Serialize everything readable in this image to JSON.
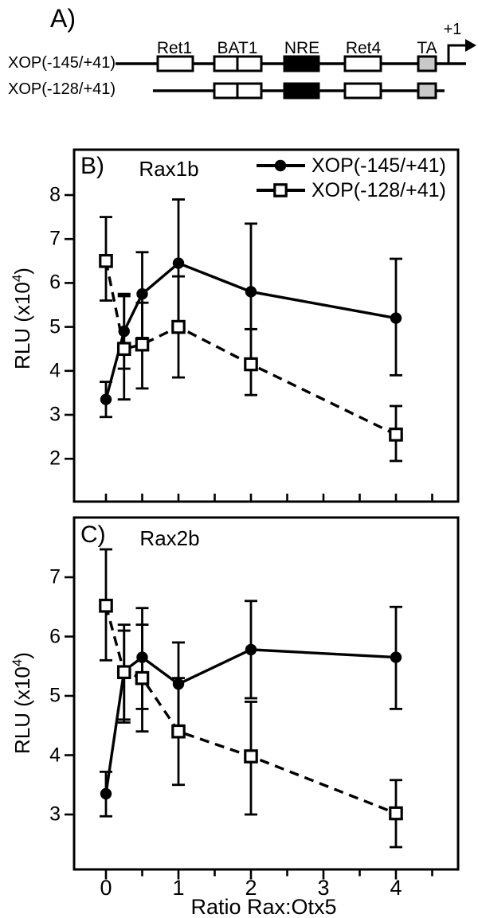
{
  "panel_a": {
    "label": "A)",
    "constructs": [
      {
        "name": "XOP(-145/+41)"
      },
      {
        "name": "XOP(-128/+41)"
      }
    ],
    "motif_labels": [
      "Ret1",
      "BAT1",
      "NRE",
      "Ret4",
      "TA"
    ],
    "tss_label": "+1",
    "colors": {
      "open": "#ffffff",
      "nre": "#000000",
      "ta": "#c9c9c9"
    }
  },
  "chart_data": [
    {
      "type": "line",
      "panel_label": "B)",
      "title": "Rax1b",
      "ylabel_base": "RLU (x10",
      "ylabel_sup": "4",
      "ylabel_close": ")",
      "x": [
        0,
        0.25,
        0.5,
        1,
        2,
        4
      ],
      "xlim": [
        -0.44,
        4.86
      ],
      "ylim": [
        1,
        9
      ],
      "yticks": [
        2,
        3,
        4,
        5,
        6,
        7,
        8
      ],
      "xticks": [
        0,
        1,
        2,
        3,
        4
      ],
      "xtick_minor_step": 0.5,
      "x_tick_labels_visible": false,
      "grid": false,
      "legend": {
        "position": "top-right",
        "entries": [
          "XOP(-145/+41)",
          "XOP(-128/+41)"
        ]
      },
      "series": [
        {
          "name": "XOP(-145/+41)",
          "marker": "filled-circle",
          "line_style": "solid",
          "values": [
            3.35,
            4.9,
            5.75,
            6.45,
            5.8,
            5.2
          ],
          "err_lo": [
            2.95,
            4.05,
            4.75,
            5.0,
            4.95,
            3.9
          ],
          "err_hi": [
            3.75,
            5.75,
            6.7,
            7.9,
            7.35,
            6.55
          ]
        },
        {
          "name": "XOP(-128/+41)",
          "marker": "open-square",
          "line_style": "dashed",
          "values": [
            6.5,
            4.5,
            4.6,
            5.0,
            4.15,
            2.55
          ],
          "err_lo": [
            5.6,
            3.35,
            3.6,
            3.85,
            3.45,
            1.95
          ],
          "err_hi": [
            7.5,
            5.7,
            5.55,
            6.15,
            4.95,
            3.2
          ]
        }
      ]
    },
    {
      "type": "line",
      "panel_label": "C)",
      "title": "Rax2b",
      "xlabel": "Ratio Rax:Otx5",
      "ylabel_base": "RLU (x10",
      "ylabel_sup": "4",
      "ylabel_close": ")",
      "x": [
        0,
        0.25,
        0.5,
        1,
        2,
        4
      ],
      "xlim": [
        -0.44,
        4.86
      ],
      "ylim": [
        2,
        8
      ],
      "yticks": [
        3,
        4,
        5,
        6,
        7
      ],
      "xticks": [
        0,
        1,
        2,
        3,
        4
      ],
      "xtick_minor_step": 0.5,
      "x_tick_labels_visible": true,
      "grid": false,
      "series": [
        {
          "name": "XOP(-145/+41)",
          "marker": "filled-circle",
          "line_style": "solid",
          "values": [
            3.35,
            5.42,
            5.65,
            5.2,
            5.78,
            5.65
          ],
          "err_lo": [
            2.97,
            4.6,
            4.78,
            4.5,
            4.96,
            4.78
          ],
          "err_hi": [
            3.72,
            6.2,
            6.48,
            5.9,
            6.6,
            6.5
          ]
        },
        {
          "name": "XOP(-128/+41)",
          "marker": "open-square",
          "line_style": "dashed",
          "values": [
            6.52,
            5.4,
            5.3,
            4.4,
            3.98,
            3.02
          ],
          "err_lo": [
            5.6,
            4.55,
            4.4,
            3.5,
            3.0,
            2.45
          ],
          "err_hi": [
            7.47,
            6.1,
            6.2,
            5.3,
            4.9,
            3.58
          ]
        }
      ]
    }
  ]
}
